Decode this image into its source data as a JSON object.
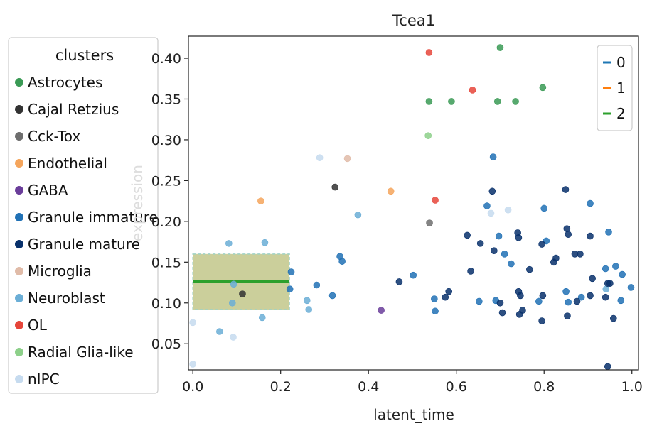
{
  "chart_data": {
    "type": "scatter",
    "title": "Tcea1",
    "xlabel": "latent_time",
    "ylabel": "expression",
    "xlim": [
      -0.01,
      1.015
    ],
    "ylim": [
      0.018,
      0.427
    ],
    "x_ticks": [
      0.0,
      0.2,
      0.4,
      0.6,
      0.8,
      1.0
    ],
    "x_tick_labels": [
      "0.0",
      "0.2",
      "0.4",
      "0.6",
      "0.8",
      "1.0"
    ],
    "y_ticks": [
      0.05,
      0.1,
      0.15,
      0.2,
      0.25,
      0.3,
      0.35,
      0.4
    ],
    "y_tick_labels": [
      "0.05",
      "0.10",
      "0.15",
      "0.20",
      "0.25",
      "0.30",
      "0.35",
      "0.40"
    ],
    "grid": false,
    "clusters_legend": {
      "title": "clusters",
      "placement": "left-outside",
      "entries": [
        {
          "name": "Astrocytes",
          "color": "#3a9a55"
        },
        {
          "name": "Cajal Retzius",
          "color": "#333333"
        },
        {
          "name": "Cck-Tox",
          "color": "#6e6e6e"
        },
        {
          "name": "Endothelial",
          "color": "#f5a55c"
        },
        {
          "name": "GABA",
          "color": "#6a3d9a"
        },
        {
          "name": "Granule immature",
          "color": "#2171b5"
        },
        {
          "name": "Granule mature",
          "color": "#08306b"
        },
        {
          "name": "Microglia",
          "color": "#e0bba8"
        },
        {
          "name": "Neuroblast",
          "color": "#6baed6"
        },
        {
          "name": "OL",
          "color": "#e6453a"
        },
        {
          "name": "Radial Glia-like",
          "color": "#8dd08a"
        },
        {
          "name": "nIPC",
          "color": "#c6dbef"
        }
      ]
    },
    "lines_legend": {
      "placement": "top-right",
      "entries": [
        {
          "name": "0",
          "color": "#1f77b4"
        },
        {
          "name": "1",
          "color": "#ff7f0e"
        },
        {
          "name": "2",
          "color": "#2ca02c"
        }
      ]
    },
    "band": {
      "x": [
        0.0,
        0.22
      ],
      "y_low": 0.092,
      "y_high": 0.16,
      "color": "#b9bf7a"
    },
    "lines": [
      {
        "name": "0",
        "color": "#1f77b4",
        "x": [
          0.0,
          0.22
        ],
        "y": [
          0.126,
          0.126
        ]
      },
      {
        "name": "1",
        "color": "#ff7f0e",
        "x": [
          0.0,
          0.22
        ],
        "y": [
          0.126,
          0.126
        ]
      },
      {
        "name": "2",
        "color": "#2ca02c",
        "x": [
          0.0,
          0.22
        ],
        "y": [
          0.126,
          0.126
        ]
      }
    ],
    "points": [
      {
        "cluster": "Astrocytes",
        "x": 0.7,
        "y": 0.413
      },
      {
        "cluster": "Astrocytes",
        "x": 0.538,
        "y": 0.347
      },
      {
        "cluster": "Astrocytes",
        "x": 0.589,
        "y": 0.347
      },
      {
        "cluster": "Astrocytes",
        "x": 0.694,
        "y": 0.347
      },
      {
        "cluster": "Astrocytes",
        "x": 0.735,
        "y": 0.347
      },
      {
        "cluster": "Astrocytes",
        "x": 0.797,
        "y": 0.364
      },
      {
        "cluster": "Radial Glia-like",
        "x": 0.536,
        "y": 0.305
      },
      {
        "cluster": "OL",
        "x": 0.538,
        "y": 0.407
      },
      {
        "cluster": "OL",
        "x": 0.637,
        "y": 0.361
      },
      {
        "cluster": "OL",
        "x": 0.552,
        "y": 0.226
      },
      {
        "cluster": "Endothelial",
        "x": 0.155,
        "y": 0.225
      },
      {
        "cluster": "Endothelial",
        "x": 0.451,
        "y": 0.237
      },
      {
        "cluster": "Microglia",
        "x": 0.352,
        "y": 0.277
      },
      {
        "cluster": "Cajal Retzius",
        "x": 0.324,
        "y": 0.242
      },
      {
        "cluster": "Cajal Retzius",
        "x": 0.113,
        "y": 0.111
      },
      {
        "cluster": "Cck-Tox",
        "x": 0.539,
        "y": 0.198
      },
      {
        "cluster": "GABA",
        "x": 0.429,
        "y": 0.091
      },
      {
        "cluster": "nIPC",
        "x": 0.289,
        "y": 0.278
      },
      {
        "cluster": "nIPC",
        "x": 0.0,
        "y": 0.076
      },
      {
        "cluster": "nIPC",
        "x": 0.0,
        "y": 0.025
      },
      {
        "cluster": "nIPC",
        "x": 0.092,
        "y": 0.058
      },
      {
        "cluster": "nIPC",
        "x": 0.718,
        "y": 0.214
      },
      {
        "cluster": "nIPC",
        "x": 0.679,
        "y": 0.21
      },
      {
        "cluster": "Neuroblast",
        "x": 0.082,
        "y": 0.173
      },
      {
        "cluster": "Neuroblast",
        "x": 0.164,
        "y": 0.174
      },
      {
        "cluster": "Neuroblast",
        "x": 0.376,
        "y": 0.208
      },
      {
        "cluster": "Neuroblast",
        "x": 0.061,
        "y": 0.065
      },
      {
        "cluster": "Neuroblast",
        "x": 0.26,
        "y": 0.103
      },
      {
        "cluster": "Neuroblast",
        "x": 0.264,
        "y": 0.092
      },
      {
        "cluster": "Neuroblast",
        "x": 0.158,
        "y": 0.082
      },
      {
        "cluster": "Neuroblast",
        "x": 0.09,
        "y": 0.1
      },
      {
        "cluster": "Neuroblast",
        "x": 0.093,
        "y": 0.123
      },
      {
        "cluster": "Neuroblast",
        "x": 0.941,
        "y": 0.117
      },
      {
        "cluster": "Granule immature",
        "x": 0.335,
        "y": 0.157
      },
      {
        "cluster": "Granule immature",
        "x": 0.34,
        "y": 0.151
      },
      {
        "cluster": "Granule immature",
        "x": 0.282,
        "y": 0.122
      },
      {
        "cluster": "Granule immature",
        "x": 0.318,
        "y": 0.109
      },
      {
        "cluster": "Granule immature",
        "x": 0.224,
        "y": 0.138
      },
      {
        "cluster": "Granule immature",
        "x": 0.221,
        "y": 0.117
      },
      {
        "cluster": "Granule immature",
        "x": 0.502,
        "y": 0.134
      },
      {
        "cluster": "Granule immature",
        "x": 0.55,
        "y": 0.105
      },
      {
        "cluster": "Granule immature",
        "x": 0.552,
        "y": 0.09
      },
      {
        "cluster": "Granule immature",
        "x": 0.67,
        "y": 0.219
      },
      {
        "cluster": "Granule immature",
        "x": 0.684,
        "y": 0.279
      },
      {
        "cluster": "Granule immature",
        "x": 0.652,
        "y": 0.102
      },
      {
        "cluster": "Granule immature",
        "x": 0.697,
        "y": 0.182
      },
      {
        "cluster": "Granule immature",
        "x": 0.71,
        "y": 0.16
      },
      {
        "cluster": "Granule immature",
        "x": 0.725,
        "y": 0.148
      },
      {
        "cluster": "Granule immature",
        "x": 0.69,
        "y": 0.103
      },
      {
        "cluster": "Granule immature",
        "x": 0.8,
        "y": 0.216
      },
      {
        "cluster": "Granule immature",
        "x": 0.805,
        "y": 0.176
      },
      {
        "cluster": "Granule immature",
        "x": 0.788,
        "y": 0.102
      },
      {
        "cluster": "Granule immature",
        "x": 0.85,
        "y": 0.114
      },
      {
        "cluster": "Granule immature",
        "x": 0.855,
        "y": 0.101
      },
      {
        "cluster": "Granule immature",
        "x": 0.905,
        "y": 0.222
      },
      {
        "cluster": "Granule immature",
        "x": 0.885,
        "y": 0.107
      },
      {
        "cluster": "Granule immature",
        "x": 0.94,
        "y": 0.142
      },
      {
        "cluster": "Granule immature",
        "x": 0.947,
        "y": 0.187
      },
      {
        "cluster": "Granule immature",
        "x": 0.963,
        "y": 0.145
      },
      {
        "cluster": "Granule immature",
        "x": 0.975,
        "y": 0.103
      },
      {
        "cluster": "Granule immature",
        "x": 0.978,
        "y": 0.135
      },
      {
        "cluster": "Granule immature",
        "x": 0.998,
        "y": 0.119
      },
      {
        "cluster": "Granule mature",
        "x": 0.47,
        "y": 0.126
      },
      {
        "cluster": "Granule mature",
        "x": 0.575,
        "y": 0.107
      },
      {
        "cluster": "Granule mature",
        "x": 0.583,
        "y": 0.114
      },
      {
        "cluster": "Granule mature",
        "x": 0.625,
        "y": 0.183
      },
      {
        "cluster": "Granule mature",
        "x": 0.633,
        "y": 0.139
      },
      {
        "cluster": "Granule mature",
        "x": 0.655,
        "y": 0.173
      },
      {
        "cluster": "Granule mature",
        "x": 0.682,
        "y": 0.237
      },
      {
        "cluster": "Granule mature",
        "x": 0.686,
        "y": 0.164
      },
      {
        "cluster": "Granule mature",
        "x": 0.7,
        "y": 0.1
      },
      {
        "cluster": "Granule mature",
        "x": 0.705,
        "y": 0.088
      },
      {
        "cluster": "Granule mature",
        "x": 0.74,
        "y": 0.186
      },
      {
        "cluster": "Granule mature",
        "x": 0.742,
        "y": 0.18
      },
      {
        "cluster": "Granule mature",
        "x": 0.742,
        "y": 0.114
      },
      {
        "cluster": "Granule mature",
        "x": 0.746,
        "y": 0.109
      },
      {
        "cluster": "Granule mature",
        "x": 0.744,
        "y": 0.086
      },
      {
        "cluster": "Granule mature",
        "x": 0.751,
        "y": 0.091
      },
      {
        "cluster": "Granule mature",
        "x": 0.767,
        "y": 0.141
      },
      {
        "cluster": "Granule mature",
        "x": 0.795,
        "y": 0.172
      },
      {
        "cluster": "Granule mature",
        "x": 0.797,
        "y": 0.109
      },
      {
        "cluster": "Granule mature",
        "x": 0.795,
        "y": 0.078
      },
      {
        "cluster": "Granule mature",
        "x": 0.827,
        "y": 0.155
      },
      {
        "cluster": "Granule mature",
        "x": 0.822,
        "y": 0.15
      },
      {
        "cluster": "Granule mature",
        "x": 0.849,
        "y": 0.239
      },
      {
        "cluster": "Granule mature",
        "x": 0.852,
        "y": 0.191
      },
      {
        "cluster": "Granule mature",
        "x": 0.855,
        "y": 0.184
      },
      {
        "cluster": "Granule mature",
        "x": 0.853,
        "y": 0.084
      },
      {
        "cluster": "Granule mature",
        "x": 0.87,
        "y": 0.16
      },
      {
        "cluster": "Granule mature",
        "x": 0.882,
        "y": 0.16
      },
      {
        "cluster": "Granule mature",
        "x": 0.875,
        "y": 0.102
      },
      {
        "cluster": "Granule mature",
        "x": 0.905,
        "y": 0.182
      },
      {
        "cluster": "Granule mature",
        "x": 0.905,
        "y": 0.109
      },
      {
        "cluster": "Granule mature",
        "x": 0.91,
        "y": 0.13
      },
      {
        "cluster": "Granule mature",
        "x": 0.94,
        "y": 0.107
      },
      {
        "cluster": "Granule mature",
        "x": 0.945,
        "y": 0.124
      },
      {
        "cluster": "Granule mature",
        "x": 0.95,
        "y": 0.124
      },
      {
        "cluster": "Granule mature",
        "x": 0.945,
        "y": 0.022
      },
      {
        "cluster": "Granule mature",
        "x": 0.958,
        "y": 0.081
      }
    ]
  }
}
